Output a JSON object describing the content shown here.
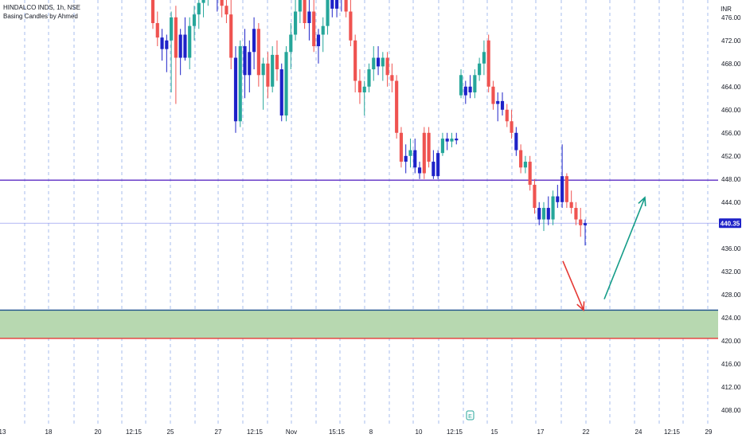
{
  "legend": {
    "symbol": "HINDALCO INDS, 1h, NSE",
    "indicator": "Basing Candles by Ahmed"
  },
  "currency_label": "INR",
  "earnings_marker": "E",
  "colors": {
    "bull": "#26a69a",
    "bear": "#ef5350",
    "basing": "#1e22c8",
    "resistance": "#6a3fc9",
    "zone_fill": "#b7d8b0",
    "zone_top": "#1b4f8a",
    "zone_bottom": "#e53935",
    "down_arrow": "#e53935",
    "up_arrow": "#149c88",
    "current_price_line": "#9aa0f0",
    "grid_dash": "#3d6fd6",
    "badge": "#1e22c8"
  },
  "chart_data": {
    "type": "candlestick",
    "symbol": "HINDALCO INDS",
    "interval": "1h",
    "exchange": "NSE",
    "y_axis": {
      "ticks": [
        408,
        412,
        416,
        420,
        424,
        428,
        432,
        436,
        440,
        444,
        448,
        452,
        456,
        460,
        464,
        468,
        472,
        476
      ],
      "ylim": [
        405.5,
        479
      ]
    },
    "x_axis": {
      "ticks": [
        "13",
        "18",
        "20",
        "12:15",
        "25",
        "27",
        "12:15",
        "Nov",
        "15:15",
        "8",
        "10",
        "12:15",
        "15",
        "17",
        "22",
        "24",
        "12:15",
        "29"
      ]
    },
    "current_price": 440.35,
    "resistance_line": 447.8,
    "demand_zone": {
      "top": 425.3,
      "bottom": 420.4
    },
    "projection": {
      "down": {
        "from": 433.8,
        "to": 425.3
      },
      "up": {
        "from": 427.2,
        "to": 444.8
      }
    },
    "candles": [
      {
        "o": 479.5,
        "h": 481,
        "l": 474,
        "c": 475,
        "k": "bear"
      },
      {
        "o": 475,
        "h": 477,
        "l": 471,
        "c": 472.5,
        "k": "bear"
      },
      {
        "o": 472.5,
        "h": 474,
        "l": 468.5,
        "c": 470.5,
        "k": "basing"
      },
      {
        "o": 470.5,
        "h": 473,
        "l": 466.5,
        "c": 472,
        "k": "basing"
      },
      {
        "o": 472,
        "h": 477,
        "l": 463,
        "c": 476,
        "k": "bull"
      },
      {
        "o": 476,
        "h": 478,
        "l": 461,
        "c": 469,
        "k": "bear"
      },
      {
        "o": 469,
        "h": 474,
        "l": 466,
        "c": 473,
        "k": "basing"
      },
      {
        "o": 473,
        "h": 476,
        "l": 468.5,
        "c": 469,
        "k": "basing"
      },
      {
        "o": 469,
        "h": 476,
        "l": 467,
        "c": 474.5,
        "k": "bull"
      },
      {
        "o": 474.5,
        "h": 478,
        "l": 472,
        "c": 476.5,
        "k": "bull"
      },
      {
        "o": 476.5,
        "h": 480,
        "l": 474,
        "c": 478.5,
        "k": "bull"
      },
      {
        "o": 478.5,
        "h": 482,
        "l": 476,
        "c": 480.5,
        "k": "bull"
      },
      {
        "o": 480.5,
        "h": 483,
        "l": 478,
        "c": 482,
        "k": "bull"
      },
      {
        "o": 482,
        "h": 484,
        "l": 479,
        "c": 480,
        "k": "bear"
      },
      {
        "o": 480,
        "h": 482,
        "l": 477,
        "c": 479,
        "k": "basing"
      },
      {
        "o": 479,
        "h": 481,
        "l": 476,
        "c": 478,
        "k": "bear"
      },
      {
        "o": 478,
        "h": 480,
        "l": 475,
        "c": 476.5,
        "k": "bear"
      },
      {
        "o": 476.5,
        "h": 480,
        "l": 467,
        "c": 469,
        "k": "bear"
      },
      {
        "o": 469,
        "h": 471,
        "l": 456,
        "c": 458,
        "k": "basing"
      },
      {
        "o": 458,
        "h": 472,
        "l": 457,
        "c": 471,
        "k": "bull"
      },
      {
        "o": 471,
        "h": 474,
        "l": 462,
        "c": 466,
        "k": "basing"
      },
      {
        "o": 466,
        "h": 472,
        "l": 463,
        "c": 470,
        "k": "basing"
      },
      {
        "o": 470,
        "h": 476,
        "l": 467,
        "c": 474,
        "k": "basing"
      },
      {
        "o": 474,
        "h": 475,
        "l": 464,
        "c": 466,
        "k": "bear"
      },
      {
        "o": 466,
        "h": 469,
        "l": 460,
        "c": 468,
        "k": "bull"
      },
      {
        "o": 468,
        "h": 470,
        "l": 462,
        "c": 464,
        "k": "bear"
      },
      {
        "o": 464,
        "h": 471,
        "l": 463,
        "c": 469.5,
        "k": "bull"
      },
      {
        "o": 469.5,
        "h": 472,
        "l": 465,
        "c": 467,
        "k": "bear"
      },
      {
        "o": 467,
        "h": 468,
        "l": 458,
        "c": 459,
        "k": "basing"
      },
      {
        "o": 459,
        "h": 471,
        "l": 458,
        "c": 470,
        "k": "bull"
      },
      {
        "o": 470,
        "h": 475,
        "l": 467,
        "c": 473,
        "k": "bull"
      },
      {
        "o": 473,
        "h": 480,
        "l": 472,
        "c": 477,
        "k": "bull"
      },
      {
        "o": 477,
        "h": 482,
        "l": 475,
        "c": 480,
        "k": "bull"
      },
      {
        "o": 480,
        "h": 481,
        "l": 474,
        "c": 475,
        "k": "bear"
      },
      {
        "o": 475,
        "h": 479,
        "l": 472,
        "c": 477,
        "k": "basing"
      },
      {
        "o": 477,
        "h": 479,
        "l": 470,
        "c": 471,
        "k": "bear"
      },
      {
        "o": 471,
        "h": 474,
        "l": 468,
        "c": 473,
        "k": "basing"
      },
      {
        "o": 473,
        "h": 476,
        "l": 470,
        "c": 474.5,
        "k": "bull"
      },
      {
        "o": 474.5,
        "h": 481,
        "l": 473,
        "c": 479,
        "k": "bull"
      },
      {
        "o": 479,
        "h": 481,
        "l": 476,
        "c": 477.5,
        "k": "basing"
      },
      {
        "o": 477.5,
        "h": 482,
        "l": 476,
        "c": 480,
        "k": "basing"
      },
      {
        "o": 480,
        "h": 483,
        "l": 477,
        "c": 479,
        "k": "basing"
      },
      {
        "o": 479,
        "h": 484,
        "l": 476,
        "c": 477,
        "k": "bear"
      },
      {
        "o": 477,
        "h": 483,
        "l": 471,
        "c": 472,
        "k": "bear"
      },
      {
        "o": 472,
        "h": 473,
        "l": 463,
        "c": 465,
        "k": "bear"
      },
      {
        "o": 465,
        "h": 467,
        "l": 461,
        "c": 463,
        "k": "bear"
      },
      {
        "o": 463,
        "h": 465,
        "l": 459,
        "c": 464,
        "k": "bull"
      },
      {
        "o": 464,
        "h": 468,
        "l": 463,
        "c": 467,
        "k": "bull"
      },
      {
        "o": 467,
        "h": 471,
        "l": 465,
        "c": 469,
        "k": "bull"
      },
      {
        "o": 469,
        "h": 471,
        "l": 466,
        "c": 467.5,
        "k": "basing"
      },
      {
        "o": 467.5,
        "h": 470,
        "l": 465,
        "c": 469,
        "k": "bull"
      },
      {
        "o": 469,
        "h": 470,
        "l": 464,
        "c": 466,
        "k": "bear"
      },
      {
        "o": 466,
        "h": 468,
        "l": 463,
        "c": 465,
        "k": "bear"
      },
      {
        "o": 465,
        "h": 466,
        "l": 455,
        "c": 456,
        "k": "bear"
      },
      {
        "o": 456,
        "h": 457,
        "l": 450,
        "c": 451,
        "k": "bear"
      },
      {
        "o": 451,
        "h": 454,
        "l": 449,
        "c": 452,
        "k": "basing"
      },
      {
        "o": 452,
        "h": 455,
        "l": 450,
        "c": 453,
        "k": "bull"
      },
      {
        "o": 453,
        "h": 455,
        "l": 449,
        "c": 450,
        "k": "basing"
      },
      {
        "o": 450,
        "h": 451,
        "l": 448,
        "c": 449,
        "k": "basing"
      },
      {
        "o": 449,
        "h": 457,
        "l": 448,
        "c": 456,
        "k": "bear"
      },
      {
        "o": 456,
        "h": 457,
        "l": 450,
        "c": 451,
        "k": "bear"
      },
      {
        "o": 451,
        "h": 453,
        "l": 448,
        "c": 448.5,
        "k": "basing"
      },
      {
        "o": 448.5,
        "h": 453,
        "l": 448,
        "c": 452.5,
        "k": "basing"
      },
      {
        "o": 452.5,
        "h": 456,
        "l": 452,
        "c": 455,
        "k": "bull"
      },
      {
        "o": 455,
        "h": 456,
        "l": 453,
        "c": 454.5,
        "k": "basing"
      },
      {
        "o": 454.5,
        "h": 456,
        "l": 453.5,
        "c": 455,
        "k": "bull"
      },
      {
        "o": 455,
        "h": 456,
        "l": 454,
        "c": 454.7,
        "k": "basing"
      },
      {
        "o": 466,
        "h": 467,
        "l": 462,
        "c": 462.5,
        "k": "bull"
      },
      {
        "o": 462.5,
        "h": 465,
        "l": 461,
        "c": 464,
        "k": "basing"
      },
      {
        "o": 464,
        "h": 466,
        "l": 462,
        "c": 463,
        "k": "basing"
      },
      {
        "o": 463,
        "h": 467,
        "l": 462,
        "c": 466,
        "k": "bull"
      },
      {
        "o": 466,
        "h": 469,
        "l": 465,
        "c": 468,
        "k": "bull"
      },
      {
        "o": 468,
        "h": 472,
        "l": 466,
        "c": 470,
        "k": "bull"
      },
      {
        "o": 472,
        "h": 473,
        "l": 463,
        "c": 464,
        "k": "bear"
      },
      {
        "o": 464,
        "h": 465,
        "l": 460,
        "c": 461,
        "k": "bear"
      },
      {
        "o": 461,
        "h": 463,
        "l": 458,
        "c": 461.5,
        "k": "basing"
      },
      {
        "o": 461.5,
        "h": 463,
        "l": 459,
        "c": 460,
        "k": "basing"
      },
      {
        "o": 460,
        "h": 461,
        "l": 457,
        "c": 458,
        "k": "bear"
      },
      {
        "o": 458,
        "h": 460,
        "l": 455,
        "c": 456,
        "k": "bear"
      },
      {
        "o": 456,
        "h": 457,
        "l": 452,
        "c": 453,
        "k": "basing"
      },
      {
        "o": 453,
        "h": 454,
        "l": 449,
        "c": 450,
        "k": "bear"
      },
      {
        "o": 450,
        "h": 452,
        "l": 449,
        "c": 451,
        "k": "bull"
      },
      {
        "o": 451,
        "h": 452,
        "l": 446,
        "c": 447,
        "k": "bear"
      },
      {
        "o": 447,
        "h": 448,
        "l": 442,
        "c": 443,
        "k": "bear"
      },
      {
        "o": 443,
        "h": 444,
        "l": 440,
        "c": 441,
        "k": "basing"
      },
      {
        "o": 441,
        "h": 444,
        "l": 439,
        "c": 443,
        "k": "bull"
      },
      {
        "o": 443,
        "h": 445,
        "l": 440,
        "c": 441,
        "k": "basing"
      },
      {
        "o": 441,
        "h": 446,
        "l": 440,
        "c": 445,
        "k": "bull"
      },
      {
        "o": 445,
        "h": 447,
        "l": 443,
        "c": 444,
        "k": "basing"
      },
      {
        "o": 444,
        "h": 454,
        "l": 443,
        "c": 448.5,
        "k": "basing"
      },
      {
        "o": 448.5,
        "h": 449,
        "l": 443,
        "c": 444,
        "k": "bear"
      },
      {
        "o": 444,
        "h": 446,
        "l": 442,
        "c": 443,
        "k": "bear"
      },
      {
        "o": 443,
        "h": 444,
        "l": 440,
        "c": 441,
        "k": "bear"
      },
      {
        "o": 441,
        "h": 443,
        "l": 438,
        "c": 440,
        "k": "bear"
      },
      {
        "o": 440,
        "h": 441,
        "l": 436.5,
        "c": 440.35,
        "k": "basing"
      }
    ]
  }
}
